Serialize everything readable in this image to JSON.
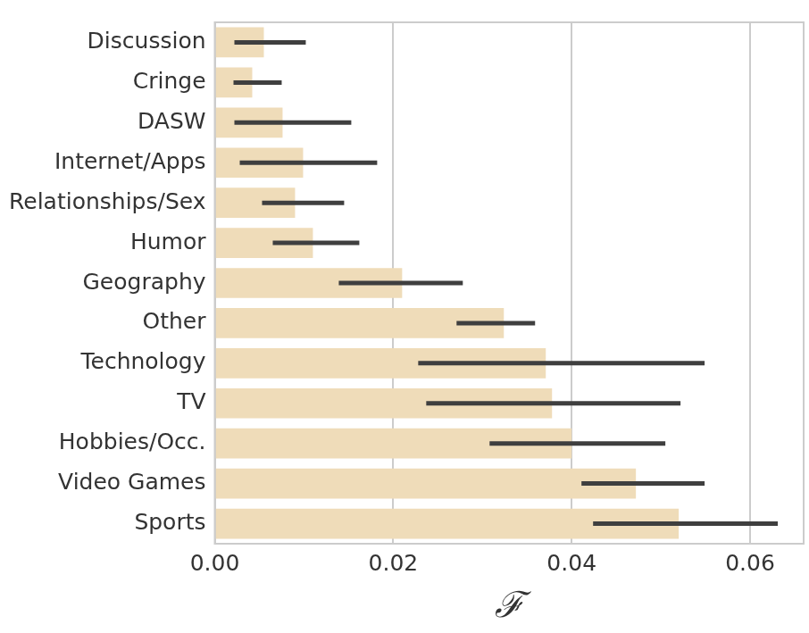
{
  "chart_data": {
    "type": "bar",
    "orientation": "horizontal",
    "x_label": "ℱ",
    "categories": [
      "Discussion",
      "Cringe",
      "DASW",
      "Internet/Apps",
      "Relationships/Sex",
      "Humor",
      "Geography",
      "Other",
      "Technology",
      "TV",
      "Hobbies/Occ.",
      "Video Games",
      "Sports"
    ],
    "values": [
      0.0055,
      0.0042,
      0.0076,
      0.0099,
      0.009,
      0.011,
      0.021,
      0.0324,
      0.0371,
      0.0378,
      0.04,
      0.0472,
      0.052
    ],
    "error_low": [
      0.0022,
      0.0021,
      0.0022,
      0.0028,
      0.0053,
      0.0065,
      0.0139,
      0.0271,
      0.0228,
      0.0237,
      0.0308,
      0.0411,
      0.0424
    ],
    "error_high": [
      0.0102,
      0.0075,
      0.0153,
      0.0182,
      0.0145,
      0.0162,
      0.0278,
      0.0359,
      0.0549,
      0.0522,
      0.0505,
      0.0549,
      0.0631
    ],
    "color": "#efdcb9",
    "xlim": [
      0,
      0.066
    ],
    "xticks": [
      {
        "value": 0,
        "label": "0.00"
      },
      {
        "value": 0.02,
        "label": "0.02"
      },
      {
        "value": 0.04,
        "label": "0.04"
      },
      {
        "value": 0.06,
        "label": "0.06"
      }
    ],
    "grid": true
  }
}
